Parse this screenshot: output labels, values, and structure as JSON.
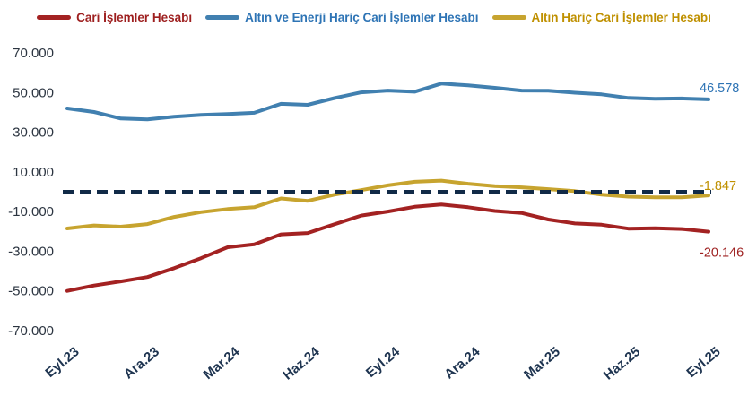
{
  "chart_data": {
    "type": "line",
    "title": "",
    "legend_position": "top",
    "grid": false,
    "categories": [
      "Eyl.23",
      "Eki.23",
      "Kas.23",
      "Ara.23",
      "Oca.24",
      "Şub.24",
      "Mar.24",
      "Nis.24",
      "May.24",
      "Haz.24",
      "Tem.24",
      "Ağu.24",
      "Eyl.24",
      "Eki.24",
      "Kas.24",
      "Ara.24",
      "Oca.25",
      "Şub.25",
      "Mar.25",
      "Nis.25",
      "May.25",
      "Haz.25",
      "Tem.25",
      "Ağu.25",
      "Eyl.25"
    ],
    "x_axis": {
      "tick_labels": [
        "Eyl.23",
        "Ara.23",
        "Mar.24",
        "Haz.24",
        "Eyl.24",
        "Ara.24",
        "Mar.25",
        "Haz.25",
        "Eyl.25"
      ],
      "tick_indices": [
        0,
        3,
        6,
        9,
        12,
        15,
        18,
        21,
        24
      ]
    },
    "y_axis": {
      "ticks": [
        {
          "label": "70.000",
          "value": 70000
        },
        {
          "label": "50.000",
          "value": 50000
        },
        {
          "label": "30.000",
          "value": 30000
        },
        {
          "label": "10.000",
          "value": 10000
        },
        {
          "label": "-10.000",
          "value": -10000
        },
        {
          "label": "-30.000",
          "value": -30000
        },
        {
          "label": "-50.000",
          "value": -50000
        },
        {
          "label": "-70.000",
          "value": -70000
        }
      ],
      "range": [
        -80000,
        80000
      ]
    },
    "zero_line": {
      "value": 0,
      "style": "dashed",
      "color": "#112a47"
    },
    "series": [
      {
        "name": "Cari İşlemler Hesabı",
        "color": "#a32222",
        "label_color": "#9e2020",
        "end_label": "-20.146",
        "end_value": -20146,
        "values": [
          -50000,
          -47300,
          -45200,
          -43000,
          -38500,
          -33500,
          -28000,
          -26500,
          -21500,
          -20800,
          -16400,
          -12000,
          -10000,
          -7600,
          -6400,
          -7800,
          -9700,
          -10700,
          -14000,
          -16000,
          -16600,
          -18600,
          -18400,
          -18800,
          -20146
        ]
      },
      {
        "name": "Altın ve Enerji Hariç Cari İşlemler Hesabı",
        "color": "#4180b0",
        "label_color": "#2e74b5",
        "end_label": "46.578",
        "end_value": 46578,
        "values": [
          42000,
          40200,
          36900,
          36500,
          37800,
          38700,
          39200,
          39800,
          44300,
          43800,
          47200,
          50100,
          51000,
          50400,
          54500,
          53600,
          52400,
          51000,
          50900,
          49900,
          49100,
          47300,
          46900,
          47000,
          46578
        ]
      },
      {
        "name": "Altın Hariç Cari İşlemler Hesabı",
        "color": "#c7a42f",
        "label_color": "#bf9000",
        "end_label": "-1.847",
        "end_value": -1847,
        "values": [
          -18500,
          -17000,
          -17600,
          -16300,
          -12700,
          -10300,
          -8700,
          -7800,
          -3400,
          -4600,
          -1500,
          800,
          3200,
          5000,
          5600,
          4000,
          2800,
          2200,
          1300,
          300,
          -1500,
          -2500,
          -2800,
          -2800,
          -1847
        ]
      }
    ]
  }
}
